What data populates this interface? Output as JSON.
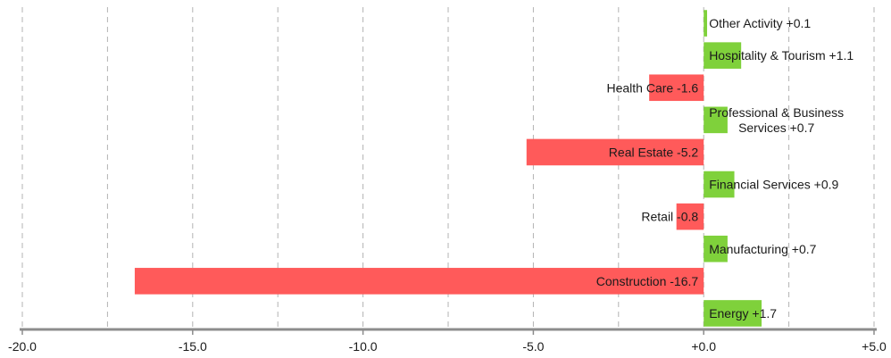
{
  "chart_data": {
    "type": "bar",
    "orientation": "horizontal",
    "categories": [
      "Other Activity",
      "Hospitality & Tourism",
      "Health Care",
      "Professional & Business Services",
      "Real Estate",
      "Financial Services",
      "Retail",
      "Manufacturing",
      "Construction",
      "Energy"
    ],
    "values": [
      0.1,
      1.1,
      -1.6,
      0.7,
      -5.2,
      0.9,
      -0.8,
      0.7,
      -16.7,
      1.7
    ],
    "data_labels": [
      [
        "Other Activity +0.1"
      ],
      [
        "Hospitality & Tourism +1.1"
      ],
      [
        "Health Care -1.6"
      ],
      [
        "Professional & Business",
        "Services +0.7"
      ],
      [
        "Real Estate -5.2"
      ],
      [
        "Financial Services +0.9"
      ],
      [
        "Retail -0.8"
      ],
      [
        "Manufacturing +0.7"
      ],
      [
        "Construction -16.7"
      ],
      [
        "Energy +1.7"
      ]
    ],
    "xlim": [
      -20,
      5
    ],
    "x_ticks": [
      -20,
      -15,
      -10,
      -5,
      0,
      5
    ],
    "x_tick_labels": [
      "-20.0",
      "-15.0",
      "-10.0",
      "-5.0",
      "+0.0",
      "+5.0"
    ],
    "x_grid_values": [
      -20,
      -17.5,
      -15,
      -12.5,
      -10,
      -7.5,
      -5,
      -2.5,
      0,
      2.5,
      5
    ],
    "grid": true,
    "title": "",
    "xlabel": "",
    "ylabel": "",
    "colors": {
      "positive": "#7fd13b",
      "negative": "#ff5a5a",
      "axis": "#8c8c8c",
      "grid": "#b3b3b3"
    }
  }
}
